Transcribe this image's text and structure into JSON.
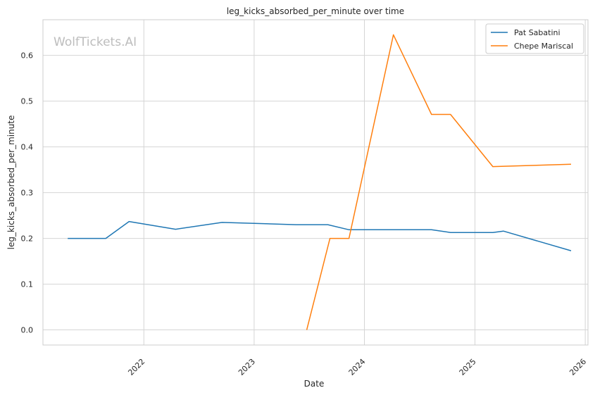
{
  "watermark": "WolfTickets.AI",
  "chart_data": {
    "type": "line",
    "title": "leg_kicks_absorbed_per_minute over time",
    "xlabel": "Date",
    "ylabel": "leg_kicks_absorbed_per_minute",
    "x_axis": "date",
    "xlim": [
      "2021-02-01",
      "2026-01-10"
    ],
    "ylim": [
      -0.033,
      0.678
    ],
    "x_ticks": [
      "2022",
      "2023",
      "2024",
      "2025",
      "2026"
    ],
    "y_ticks": [
      0.0,
      0.1,
      0.2,
      0.3,
      0.4,
      0.5,
      0.6
    ],
    "y_tick_labels": [
      "0.0",
      "0.1",
      "0.2",
      "0.3",
      "0.4",
      "0.5",
      "0.6"
    ],
    "grid": true,
    "legend": {
      "position": "top-right"
    },
    "series": [
      {
        "name": "Pat Sabatini",
        "color": "#1f77b4",
        "points": [
          {
            "x": "2021-04-24",
            "y": 0.2
          },
          {
            "x": "2021-08-28",
            "y": 0.2
          },
          {
            "x": "2021-11-13",
            "y": 0.237
          },
          {
            "x": "2022-04-16",
            "y": 0.22
          },
          {
            "x": "2022-09-17",
            "y": 0.235
          },
          {
            "x": "2023-05-20",
            "y": 0.23
          },
          {
            "x": "2023-09-02",
            "y": 0.23
          },
          {
            "x": "2023-11-11",
            "y": 0.219
          },
          {
            "x": "2024-08-10",
            "y": 0.219
          },
          {
            "x": "2024-10-12",
            "y": 0.213
          },
          {
            "x": "2025-03-01",
            "y": 0.213
          },
          {
            "x": "2025-04-05",
            "y": 0.216
          },
          {
            "x": "2025-11-15",
            "y": 0.173
          }
        ]
      },
      {
        "name": "Chepe Mariscal",
        "color": "#ff7f0e",
        "points": [
          {
            "x": "2023-06-24",
            "y": 0.0
          },
          {
            "x": "2023-09-09",
            "y": 0.2
          },
          {
            "x": "2023-11-11",
            "y": 0.2
          },
          {
            "x": "2024-04-06",
            "y": 0.645
          },
          {
            "x": "2024-08-10",
            "y": 0.471
          },
          {
            "x": "2024-10-12",
            "y": 0.471
          },
          {
            "x": "2025-03-01",
            "y": 0.357
          },
          {
            "x": "2025-11-15",
            "y": 0.362
          }
        ]
      }
    ]
  }
}
